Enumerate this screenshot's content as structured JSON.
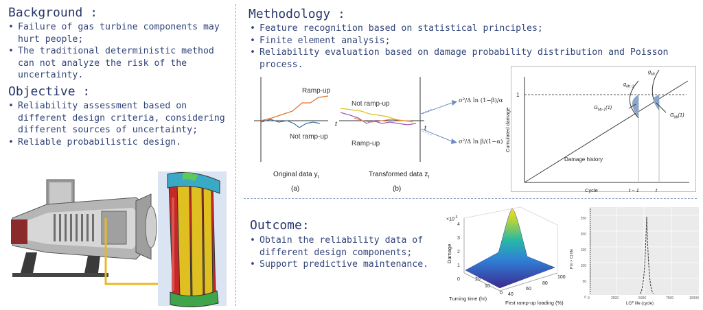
{
  "background": {
    "title": "Background :",
    "items": [
      "Failure of gas turbine components may hurt people;",
      "The traditional deterministic method can not analyze the risk of the uncertainty."
    ]
  },
  "objective": {
    "title": "Objective :",
    "items": [
      "Reliability assessment based on different design criteria, considering different sources of uncertainty;",
      "Reliable probabilistic design."
    ]
  },
  "methodology": {
    "title": "Methodology :",
    "items": [
      "Feature recognition based on statistical principles;",
      "Finite element analysis;",
      "Reliability evaluation based on damage probability distribution and Poisson process."
    ]
  },
  "outcome": {
    "title": "Outcome:",
    "items": [
      "Obtain the reliability data of different design components;",
      "Support predictive maintenance."
    ]
  },
  "fig_a": {
    "ramp_up": "Ramp-up",
    "not_ramp_up": "Not ramp-up",
    "axis_t": "t",
    "caption": "Original data y",
    "caption_sub": "t",
    "tag": "(a)"
  },
  "fig_b": {
    "not_ramp_up": "Not ramp-up",
    "ramp_up": "Ramp-up",
    "axis_t": "t",
    "caption": "Transformed data z",
    "caption_sub": "t",
    "tag": "(b)"
  },
  "thresholds": {
    "upper": "σ²/Δ ln (1−β)/α",
    "lower": "σ²/Δ ln β/(1−α)"
  },
  "damage_chart": {
    "ylabel": "Cumulated damage",
    "xlabel": "Cycle",
    "y_tick": "1",
    "x_tick_1": "t − 1",
    "x_tick_2": "t",
    "history": "Damage history",
    "g_prev": "g",
    "g_prev_sub": "Mt−1",
    "g_curr": "g",
    "g_curr_sub": "Mt",
    "G_prev": "G",
    "G_prev_sub": "Mt−1",
    "G_prev_arg": "(1)",
    "G_curr": "G",
    "G_curr_sub": "Mt",
    "G_curr_arg": "(1)"
  },
  "surface_chart": {
    "exponent": "×10",
    "exponent_power": "-3",
    "zlabel": "Damage",
    "xlabel": "Turning time (hr)",
    "ylabel": "First ramp-up loading (%)",
    "z_ticks": [
      "4",
      "3",
      "2",
      "1",
      "0"
    ],
    "x_ticks": [
      "20",
      "10",
      "0"
    ],
    "y_ticks": [
      "40",
      "60",
      "80",
      "100"
    ]
  },
  "density_chart": {
    "xlabel": "LCF life (cycle)",
    "ylabel": "P(n > C) life",
    "y_ticks": [
      "250",
      "200",
      "150",
      "100",
      "50",
      "0"
    ],
    "x_ticks": [
      "0",
      "2500",
      "5000",
      "7500",
      "10000"
    ]
  }
}
